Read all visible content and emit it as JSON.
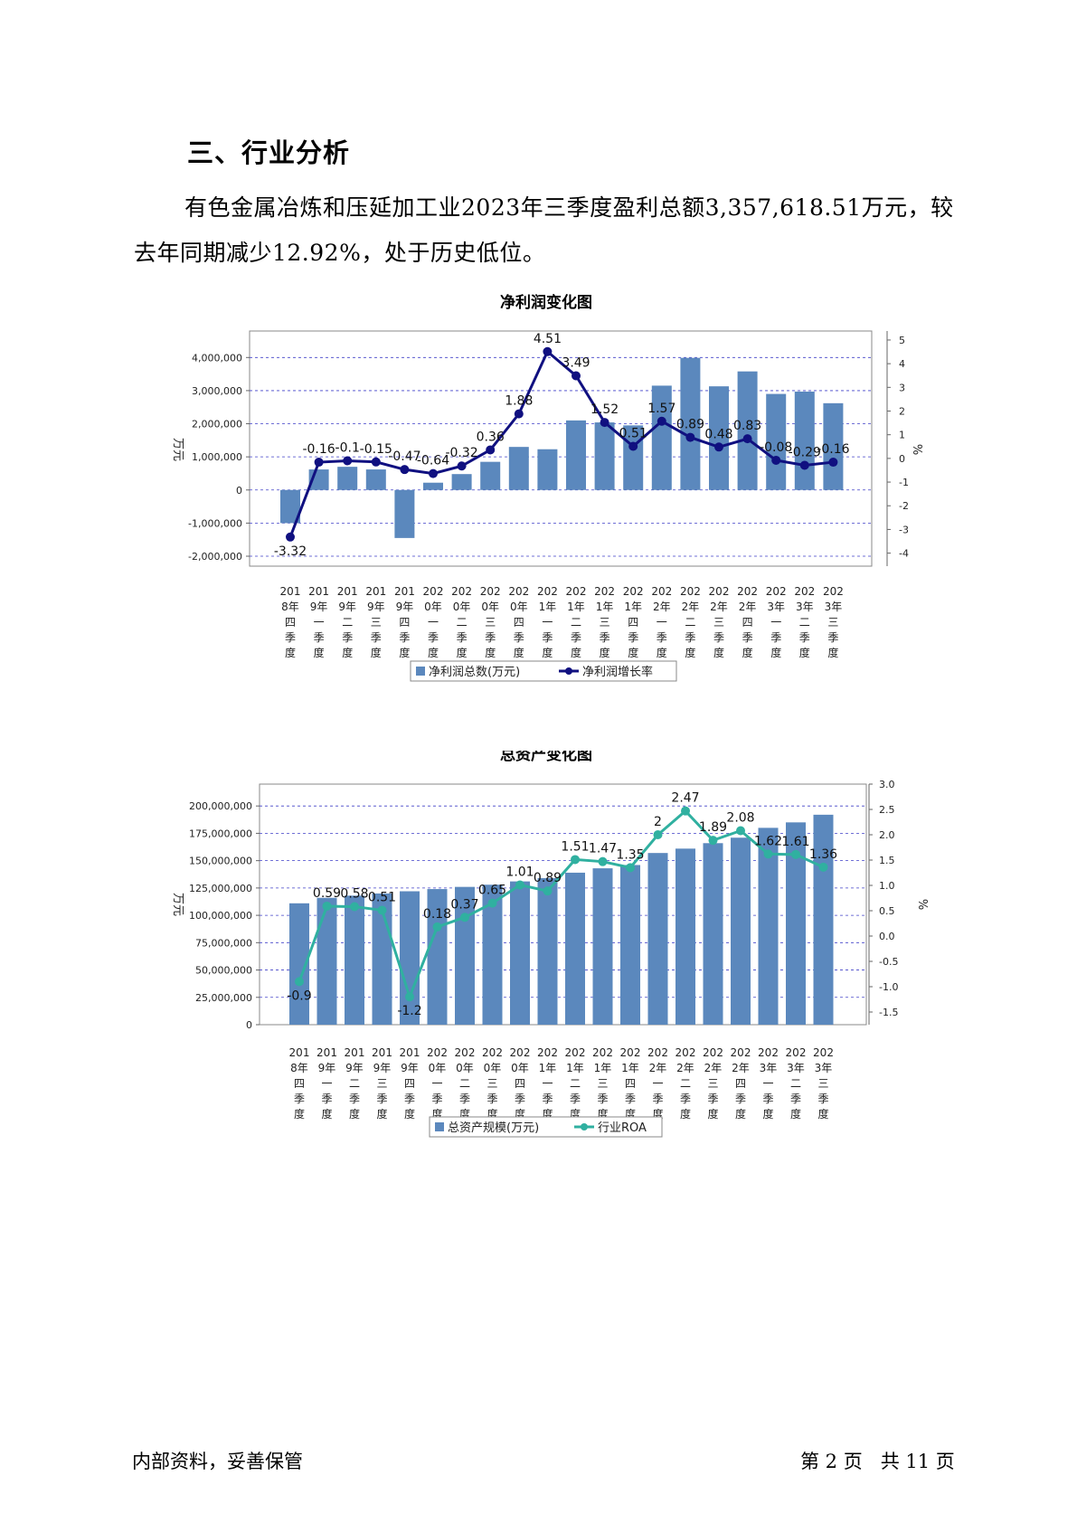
{
  "heading": "三、行业分析",
  "paragraph": "有色金属冶炼和压延加工业2023年三季度盈利总额3,357,618.51万元，较去年同期减少12.92%，处于历史低位。",
  "charts": [
    {
      "title": "净利润变化图",
      "left_axis_title": "万元",
      "right_axis_title": "%",
      "left_ticks": [
        "4,000,000",
        "3,000,000",
        "2,000,000",
        "1,000,000",
        "0",
        "-1,000,000",
        "-2,000,000"
      ],
      "right_ticks": [
        "5",
        "4",
        "3",
        "2",
        "1",
        "0",
        "-1",
        "-2",
        "-3",
        "-4"
      ],
      "legend_bar": "净利润总数(万元)",
      "legend_line": "净利润增长率",
      "label_lines": [
        [
          "201",
          "8年",
          "四",
          "季",
          "度"
        ],
        [
          "201",
          "9年",
          "一",
          "季",
          "度"
        ],
        [
          "201",
          "9年",
          "二",
          "季",
          "度"
        ],
        [
          "201",
          "9年",
          "三",
          "季",
          "度"
        ],
        [
          "201",
          "9年",
          "四",
          "季",
          "度"
        ],
        [
          "202",
          "0年",
          "一",
          "季",
          "度"
        ],
        [
          "202",
          "0年",
          "二",
          "季",
          "度"
        ],
        [
          "202",
          "0年",
          "三",
          "季",
          "度"
        ],
        [
          "202",
          "0年",
          "四",
          "季",
          "度"
        ],
        [
          "202",
          "1年",
          "一",
          "季",
          "度"
        ],
        [
          "202",
          "1年",
          "二",
          "季",
          "度"
        ],
        [
          "202",
          "1年",
          "三",
          "季",
          "度"
        ],
        [
          "202",
          "1年",
          "四",
          "季",
          "度"
        ],
        [
          "202",
          "2年",
          "一",
          "季",
          "度"
        ],
        [
          "202",
          "2年",
          "二",
          "季",
          "度"
        ],
        [
          "202",
          "2年",
          "三",
          "季",
          "度"
        ],
        [
          "202",
          "2年",
          "四",
          "季",
          "度"
        ],
        [
          "202",
          "3年",
          "一",
          "季",
          "度"
        ],
        [
          "202",
          "3年",
          "二",
          "季",
          "度"
        ],
        [
          "202",
          "3年",
          "三",
          "季",
          "度"
        ]
      ],
      "line_value_labels": [
        "-3.32",
        "-0.16",
        "-0.1",
        "-0.15",
        "-0.47",
        "-0.64",
        "-0.32",
        "0.36",
        "1.88",
        "4.51",
        "3.49",
        "1.52",
        "0.51",
        "1.57",
        "0.89",
        "0.48",
        "0.83",
        "-0.08",
        "-0.29",
        "-0.16"
      ]
    },
    {
      "title": "总资产变化图",
      "left_axis_title": "万元",
      "right_axis_title": "%",
      "left_ticks": [
        "200,000,000",
        "175,000,000",
        "150,000,000",
        "125,000,000",
        "100,000,000",
        "75,000,000",
        "50,000,000",
        "25,000,000",
        "0"
      ],
      "right_ticks": [
        "3.0",
        "2.5",
        "2.0",
        "1.5",
        "1.0",
        "0.5",
        "0.0",
        "-0.5",
        "-1.0",
        "-1.5"
      ],
      "legend_bar": "总资产规模(万元)",
      "legend_line": "行业ROA",
      "label_lines": [
        [
          "201",
          "8年",
          "四",
          "季",
          "度"
        ],
        [
          "201",
          "9年",
          "一",
          "季",
          "度"
        ],
        [
          "201",
          "9年",
          "二",
          "季",
          "度"
        ],
        [
          "201",
          "9年",
          "三",
          "季",
          "度"
        ],
        [
          "201",
          "9年",
          "四",
          "季",
          "度"
        ],
        [
          "202",
          "0年",
          "一",
          "季",
          "度"
        ],
        [
          "202",
          "0年",
          "二",
          "季",
          "度"
        ],
        [
          "202",
          "0年",
          "三",
          "季",
          "度"
        ],
        [
          "202",
          "0年",
          "四",
          "季",
          "度"
        ],
        [
          "202",
          "1年",
          "一",
          "季",
          "度"
        ],
        [
          "202",
          "1年",
          "二",
          "季",
          "度"
        ],
        [
          "202",
          "1年",
          "三",
          "季",
          "度"
        ],
        [
          "202",
          "1年",
          "四",
          "季",
          "度"
        ],
        [
          "202",
          "2年",
          "一",
          "季",
          "度"
        ],
        [
          "202",
          "2年",
          "二",
          "季",
          "度"
        ],
        [
          "202",
          "2年",
          "三",
          "季",
          "度"
        ],
        [
          "202",
          "2年",
          "四",
          "季",
          "度"
        ],
        [
          "202",
          "3年",
          "一",
          "季",
          "度"
        ],
        [
          "202",
          "3年",
          "二",
          "季",
          "度"
        ],
        [
          "202",
          "3年",
          "三",
          "季",
          "度"
        ]
      ],
      "line_value_labels": [
        "-0.9",
        "0.59",
        "0.58",
        "0.51",
        "-1.2",
        "0.18",
        "0.37",
        "0.65",
        "1.01",
        "0.89",
        "1.51",
        "1.47",
        "1.35",
        "2",
        "2.47",
        "1.89",
        "2.08",
        "1.62",
        "1.61",
        "1.36"
      ]
    }
  ],
  "chart_data": [
    {
      "type": "bar",
      "title": "净利润变化图",
      "categories": [
        "2018年四季度",
        "2019年一季度",
        "2019年二季度",
        "2019年三季度",
        "2019年四季度",
        "2020年一季度",
        "2020年二季度",
        "2020年三季度",
        "2020年四季度",
        "2021年一季度",
        "2021年二季度",
        "2021年三季度",
        "2021年四季度",
        "2022年一季度",
        "2022年二季度",
        "2022年三季度",
        "2022年四季度",
        "2023年一季度",
        "2023年二季度",
        "2023年三季度"
      ],
      "series": [
        {
          "name": "净利润总数(万元)",
          "kind": "bar",
          "axis": "left",
          "color": "#5b88bd",
          "values": [
            -1000000,
            620000,
            700000,
            620000,
            -1450000,
            220000,
            480000,
            850000,
            1300000,
            1230000,
            2100000,
            2040000,
            1950000,
            3150000,
            3990000,
            3130000,
            3580000,
            2900000,
            2970000,
            2620000
          ]
        },
        {
          "name": "净利润增长率",
          "kind": "line",
          "axis": "right",
          "color": "#101080",
          "values": [
            -3.32,
            -0.16,
            -0.1,
            -0.15,
            -0.47,
            -0.64,
            -0.32,
            0.36,
            1.88,
            4.51,
            3.49,
            1.52,
            0.51,
            1.57,
            0.89,
            0.48,
            0.83,
            -0.08,
            -0.29,
            -0.16
          ]
        }
      ],
      "ylabel": "万元",
      "y2label": "%",
      "ylim": [
        -2300000,
        4800000
      ],
      "y2lim": [
        -4.55,
        5.38
      ],
      "grid": true,
      "legend": "bottom"
    },
    {
      "type": "bar",
      "title": "总资产变化图",
      "categories": [
        "2018年四季度",
        "2019年一季度",
        "2019年二季度",
        "2019年三季度",
        "2019年四季度",
        "2020年一季度",
        "2020年二季度",
        "2020年三季度",
        "2020年四季度",
        "2021年一季度",
        "2021年二季度",
        "2021年三季度",
        "2021年四季度",
        "2022年一季度",
        "2022年二季度",
        "2022年三季度",
        "2022年四季度",
        "2023年一季度",
        "2023年二季度",
        "2023年三季度"
      ],
      "series": [
        {
          "name": "总资产规模(万元)",
          "kind": "bar",
          "axis": "left",
          "color": "#5b88bd",
          "values": [
            111000000,
            116000000,
            118000000,
            120000000,
            122000000,
            124000000,
            126000000,
            128000000,
            131000000,
            134000000,
            139000000,
            143000000,
            146000000,
            157000000,
            161000000,
            166000000,
            171000000,
            180000000,
            185000000,
            192000000
          ]
        },
        {
          "name": "行业ROA",
          "kind": "line",
          "axis": "right",
          "color": "#30b0a0",
          "values": [
            -0.9,
            0.59,
            0.58,
            0.51,
            -1.2,
            0.18,
            0.37,
            0.65,
            1.01,
            0.89,
            1.51,
            1.47,
            1.35,
            2,
            2.47,
            1.89,
            2.08,
            1.62,
            1.61,
            1.36
          ]
        }
      ],
      "ylabel": "万元",
      "y2label": "%",
      "ylim": [
        0,
        220000000
      ],
      "y2lim": [
        -1.75,
        3.0
      ],
      "grid": true,
      "legend": "bottom"
    }
  ],
  "footer": {
    "left": "内部资料，妥善保管",
    "right": "第 2 页   共 11 页"
  }
}
